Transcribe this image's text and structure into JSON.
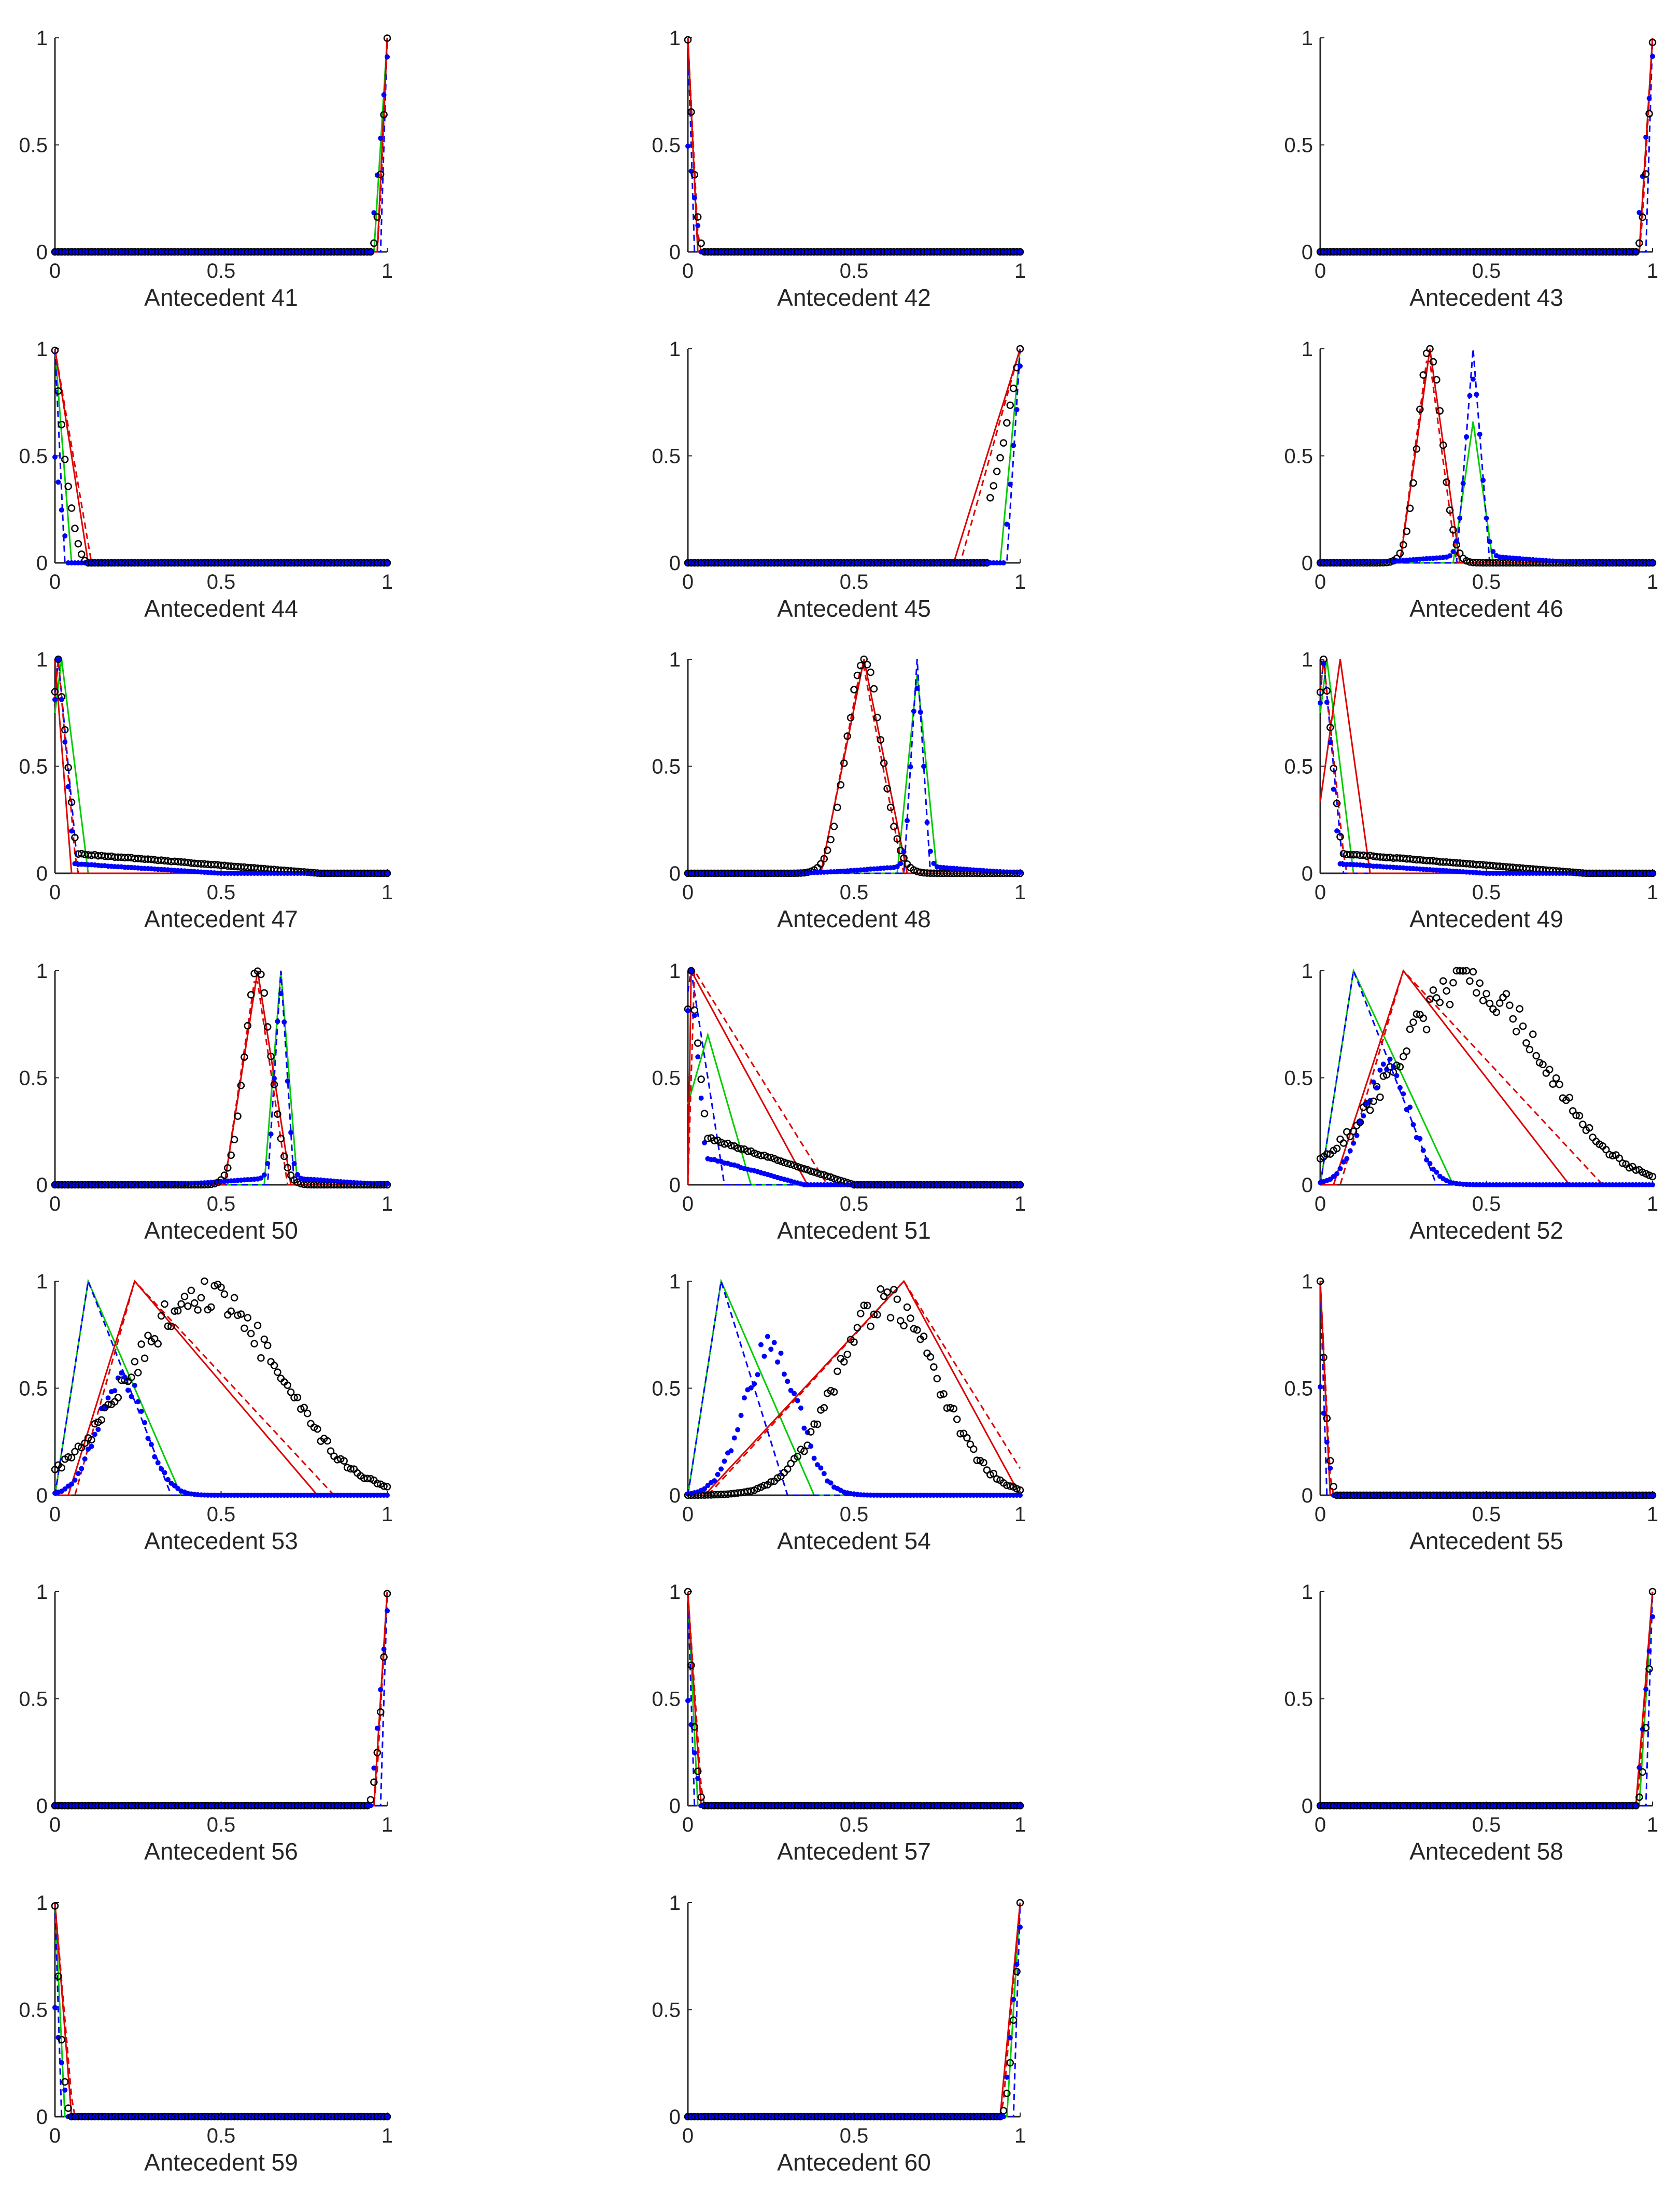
{
  "figure_title": "",
  "colors": {
    "black": "#000000",
    "blue": "#0000ff",
    "green": "#00cc00",
    "red": "#dd0000",
    "axis": "#262626"
  },
  "chart_data": [
    {
      "type": "line",
      "title": "",
      "xlabel": "Antecedent 41",
      "xlim": [
        0,
        1
      ],
      "ylim": [
        0,
        1
      ],
      "xticks": [
        "0",
        "0.5",
        "1"
      ],
      "yticks": [
        "0",
        "0.5",
        "1"
      ],
      "shape": "right",
      "pos": [
        0.985,
        1
      ],
      "width": [
        0.03,
        0.02,
        0.04,
        0.05
      ]
    },
    {
      "type": "line",
      "title": "",
      "xlabel": "Antecedent 42",
      "xlim": [
        0,
        1
      ],
      "ylim": [
        0,
        1
      ],
      "xticks": [
        "0",
        "0.5",
        "1"
      ],
      "yticks": [
        "0",
        "0.5",
        "1"
      ],
      "shape": "left",
      "pos": [
        0,
        0
      ],
      "width": [
        0.03,
        0.02,
        0.03,
        0.05
      ]
    },
    {
      "type": "line",
      "title": "",
      "xlabel": "Antecedent 43",
      "xlim": [
        0,
        1
      ],
      "ylim": [
        0,
        1
      ],
      "xticks": [
        "0",
        "0.5",
        "1"
      ],
      "yticks": [
        "0",
        "0.5",
        "1"
      ],
      "shape": "right",
      "pos": [
        0.985,
        1
      ],
      "width": [
        0.04,
        0.02,
        0.04,
        0.05
      ]
    },
    {
      "type": "line",
      "title": "",
      "xlabel": "Antecedent 44",
      "xlim": [
        0,
        1
      ],
      "ylim": [
        0,
        1
      ],
      "xticks": [
        "0",
        "0.5",
        "1"
      ],
      "yticks": [
        "0",
        "0.5",
        "1"
      ],
      "shape": "left",
      "pos": [
        0,
        0
      ],
      "width": [
        0.1,
        0.03,
        0.05,
        0.1
      ]
    },
    {
      "type": "line",
      "title": "",
      "xlabel": "Antecedent 45",
      "xlim": [
        0,
        1
      ],
      "ylim": [
        0,
        1
      ],
      "xticks": [
        "0",
        "0.5",
        "1"
      ],
      "yticks": [
        "0",
        "0.5",
        "1"
      ],
      "shape": "right",
      "pos": [
        1,
        1
      ],
      "width": [
        0.2,
        0.04,
        0.06,
        0.2
      ]
    },
    {
      "type": "line",
      "title": "",
      "xlabel": "Antecedent 46",
      "xlim": [
        0,
        1
      ],
      "ylim": [
        0,
        1
      ],
      "xticks": [
        "0",
        "0.5",
        "1"
      ],
      "yticks": [
        "0",
        "0.5",
        "1"
      ],
      "shape": "peak",
      "pos": [
        0.33,
        0.46
      ],
      "width": [
        0.09,
        0.05,
        0.06,
        0.09
      ],
      "blue_peak": 1,
      "green_peak": 0.66
    },
    {
      "type": "line",
      "title": "",
      "xlabel": "Antecedent 47",
      "xlim": [
        0,
        1
      ],
      "ylim": [
        0,
        1
      ],
      "xticks": [
        "0",
        "0.5",
        "1"
      ],
      "yticks": [
        "0",
        "0.5",
        "1"
      ],
      "shape": "left_tail",
      "pos": [
        0,
        0
      ],
      "width": [
        0.05,
        0.04,
        0.08,
        0.06
      ]
    },
    {
      "type": "line",
      "title": "",
      "xlabel": "Antecedent 48",
      "xlim": [
        0,
        1
      ],
      "ylim": [
        0,
        1
      ],
      "xticks": [
        "0",
        "0.5",
        "1"
      ],
      "yticks": [
        "0",
        "0.5",
        "1"
      ],
      "shape": "peak",
      "pos": [
        0.53,
        0.69
      ],
      "width": [
        0.13,
        0.04,
        0.06,
        0.13
      ],
      "blue_peak": 1,
      "green_peak": 0.93
    },
    {
      "type": "line",
      "title": "",
      "xlabel": "Antecedent 49",
      "xlim": [
        0,
        1
      ],
      "ylim": [
        0,
        1
      ],
      "xticks": [
        "0",
        "0.5",
        "1"
      ],
      "yticks": [
        "0",
        "0.5",
        "1"
      ],
      "shape": "left_tail2",
      "pos": [
        0.01,
        0.01
      ],
      "width": [
        0.06,
        0.04,
        0.08,
        0.08
      ]
    },
    {
      "type": "line",
      "title": "",
      "xlabel": "Antecedent 50",
      "xlim": [
        0,
        1
      ],
      "ylim": [
        0,
        1
      ],
      "xticks": [
        "0",
        "0.5",
        "1"
      ],
      "yticks": [
        "0",
        "0.5",
        "1"
      ],
      "shape": "peak",
      "pos": [
        0.61,
        0.68
      ],
      "width": [
        0.1,
        0.04,
        0.05,
        0.1
      ],
      "blue_peak": 1,
      "green_peak": 1
    },
    {
      "type": "line",
      "title": "",
      "xlabel": "Antecedent 51",
      "xlim": [
        0,
        1
      ],
      "ylim": [
        0,
        1
      ],
      "xticks": [
        "0",
        "0.5",
        "1"
      ],
      "yticks": [
        "0",
        "0.5",
        "1"
      ],
      "shape": "left_wide",
      "pos": [
        0.01,
        0.01
      ],
      "width": [
        0.35,
        0.1,
        0.13,
        0.4
      ]
    },
    {
      "type": "line",
      "title": "",
      "xlabel": "Antecedent 52",
      "xlim": [
        0,
        1
      ],
      "ylim": [
        0,
        1
      ],
      "xticks": [
        "0",
        "0.5",
        "1"
      ],
      "yticks": [
        "0",
        "0.5",
        "1"
      ],
      "shape": "wide",
      "pos": [
        0.25,
        0.1
      ],
      "width": [
        0.5,
        0.25,
        0.3,
        0.6
      ]
    },
    {
      "type": "line",
      "title": "",
      "xlabel": "Antecedent 53",
      "xlim": [
        0,
        1
      ],
      "ylim": [
        0,
        1
      ],
      "xticks": [
        "0",
        "0.5",
        "1"
      ],
      "yticks": [
        "0",
        "0.5",
        "1"
      ],
      "shape": "wide",
      "pos": [
        0.24,
        0.1
      ],
      "width": [
        0.55,
        0.25,
        0.28,
        0.6
      ]
    },
    {
      "type": "line",
      "title": "",
      "xlabel": "Antecedent 54",
      "xlim": [
        0,
        1
      ],
      "ylim": [
        0,
        1
      ],
      "xticks": [
        "0",
        "0.5",
        "1"
      ],
      "yticks": [
        "0",
        "0.5",
        "1"
      ],
      "shape": "wide2",
      "pos": [
        0.65,
        0.1
      ],
      "width": [
        0.35,
        0.2,
        0.28,
        0.4
      ]
    },
    {
      "type": "line",
      "title": "",
      "xlabel": "Antecedent 55",
      "xlim": [
        0,
        1
      ],
      "ylim": [
        0,
        1
      ],
      "xticks": [
        "0",
        "0.5",
        "1"
      ],
      "yticks": [
        "0",
        "0.5",
        "1"
      ],
      "shape": "left",
      "pos": [
        0,
        0
      ],
      "width": [
        0.03,
        0.02,
        0.03,
        0.05
      ]
    },
    {
      "type": "line",
      "title": "",
      "xlabel": "Antecedent 56",
      "xlim": [
        0,
        1
      ],
      "ylim": [
        0,
        1
      ],
      "xticks": [
        "0",
        "0.5",
        "1"
      ],
      "yticks": [
        "0",
        "0.5",
        "1"
      ],
      "shape": "right",
      "pos": [
        0.99,
        1
      ],
      "width": [
        0.04,
        0.02,
        0.04,
        0.06
      ]
    },
    {
      "type": "line",
      "title": "",
      "xlabel": "Antecedent 57",
      "xlim": [
        0,
        1
      ],
      "ylim": [
        0,
        1
      ],
      "xticks": [
        "0",
        "0.5",
        "1"
      ],
      "yticks": [
        "0",
        "0.5",
        "1"
      ],
      "shape": "left",
      "pos": [
        0,
        0
      ],
      "width": [
        0.04,
        0.02,
        0.03,
        0.05
      ]
    },
    {
      "type": "line",
      "title": "",
      "xlabel": "Antecedent 58",
      "xlim": [
        0,
        1
      ],
      "ylim": [
        0,
        1
      ],
      "xticks": [
        "0",
        "0.5",
        "1"
      ],
      "yticks": [
        "0",
        "0.5",
        "1"
      ],
      "shape": "right",
      "pos": [
        0.99,
        1
      ],
      "width": [
        0.05,
        0.02,
        0.04,
        0.05
      ]
    },
    {
      "type": "line",
      "title": "",
      "xlabel": "Antecedent 59",
      "xlim": [
        0,
        1
      ],
      "ylim": [
        0,
        1
      ],
      "xticks": [
        "0",
        "0.5",
        "1"
      ],
      "yticks": [
        "0",
        "0.5",
        "1"
      ],
      "shape": "left",
      "pos": [
        0,
        0
      ],
      "width": [
        0.05,
        0.02,
        0.03,
        0.05
      ]
    },
    {
      "type": "line",
      "title": "",
      "xlabel": "Antecedent 60",
      "xlim": [
        0,
        1
      ],
      "ylim": [
        0,
        1
      ],
      "xticks": [
        "0",
        "0.5",
        "1"
      ],
      "yticks": [
        "0",
        "0.5",
        "1"
      ],
      "shape": "right",
      "pos": [
        1,
        1
      ],
      "width": [
        0.06,
        0.02,
        0.04,
        0.06
      ]
    }
  ]
}
